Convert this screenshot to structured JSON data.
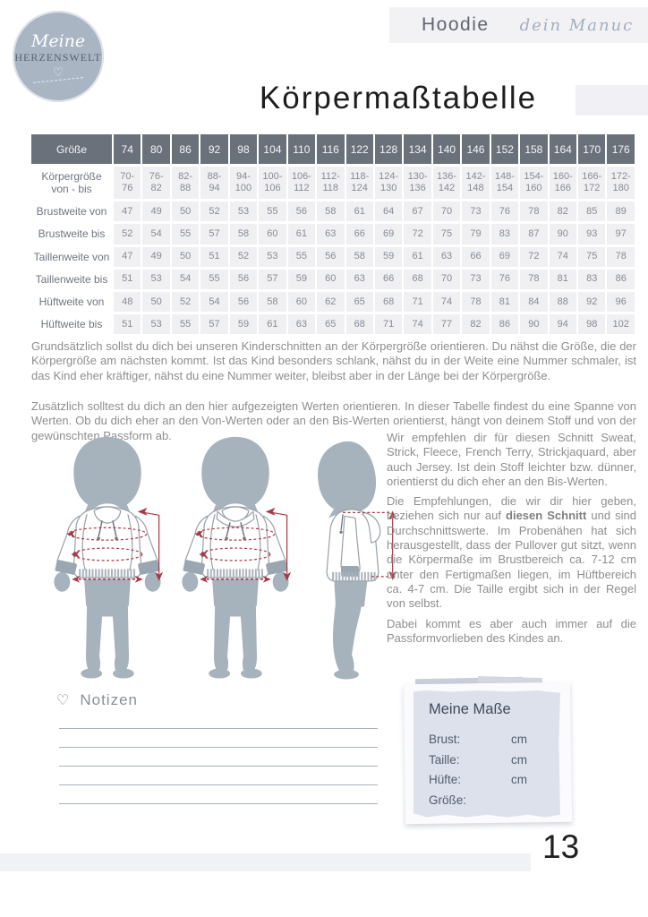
{
  "logo": {
    "script_text": "Meine",
    "brand_text": "HERZENSWELT",
    "heart_icon": "♡"
  },
  "header_bar": {
    "pattern_name": "Hoodie",
    "script_note": "dein Manuc"
  },
  "page_title": "Körpermaßtabelle",
  "size_table": {
    "corner_header": "Größe",
    "sizes": [
      "74",
      "80",
      "86",
      "92",
      "98",
      "104",
      "110",
      "116",
      "122",
      "128",
      "134",
      "140",
      "146",
      "152",
      "158",
      "164",
      "170",
      "176"
    ],
    "rows": [
      {
        "label": "Körpergröße\nvon - bis",
        "values": [
          "70-\n76",
          "76-\n82",
          "82-\n88",
          "88-\n94",
          "94-\n100",
          "100-\n106",
          "106-\n112",
          "112-\n118",
          "118-\n124",
          "124-\n130",
          "130-\n136",
          "136-\n142",
          "142-\n148",
          "148-\n154",
          "154-\n160",
          "160-\n166",
          "166-\n172",
          "172-\n180"
        ]
      },
      {
        "label": "Brustweite von",
        "values": [
          "47",
          "49",
          "50",
          "52",
          "53",
          "55",
          "56",
          "58",
          "61",
          "64",
          "67",
          "70",
          "73",
          "76",
          "78",
          "82",
          "85",
          "89"
        ]
      },
      {
        "label": "Brustweite bis",
        "values": [
          "52",
          "54",
          "55",
          "57",
          "58",
          "60",
          "61",
          "63",
          "66",
          "69",
          "72",
          "75",
          "79",
          "83",
          "87",
          "90",
          "93",
          "97"
        ]
      },
      {
        "label": "Taillenweite von",
        "values": [
          "47",
          "49",
          "50",
          "51",
          "52",
          "53",
          "55",
          "56",
          "58",
          "59",
          "61",
          "63",
          "66",
          "69",
          "72",
          "74",
          "75",
          "78"
        ]
      },
      {
        "label": "Taillenweite bis",
        "values": [
          "51",
          "53",
          "54",
          "55",
          "56",
          "57",
          "59",
          "60",
          "63",
          "66",
          "68",
          "70",
          "73",
          "76",
          "78",
          "81",
          "83",
          "86"
        ]
      },
      {
        "label": "Hüftweite von",
        "values": [
          "48",
          "50",
          "52",
          "54",
          "56",
          "58",
          "60",
          "62",
          "65",
          "68",
          "71",
          "74",
          "78",
          "81",
          "84",
          "88",
          "92",
          "96"
        ]
      },
      {
        "label": "Hüftweite bis",
        "values": [
          "51",
          "53",
          "55",
          "57",
          "59",
          "61",
          "63",
          "65",
          "68",
          "71",
          "74",
          "77",
          "82",
          "86",
          "90",
          "94",
          "98",
          "102"
        ]
      }
    ]
  },
  "intro_paragraphs": {
    "p1": "Grundsätzlich sollst du dich bei unseren Kinderschnitten an der Körpergröße orientieren. Du nähst die Größe, die der Körpergröße am nächsten kommt. Ist das Kind besonders schlank, nähst du in der Weite eine Nummer schmaler, ist das Kind eher kräftiger, nähst du eine Nummer weiter, bleibst aber in der Länge bei der Körpergröße.",
    "p2": "Zusätzlich solltest du dich an den hier aufgezeigten Werten orientieren. In dieser Tabelle findest du eine Spanne von Werten. Ob du dich eher an den Von-Werten oder an den Bis-Werten orientierst, hängt von deinem Stoff und von der gewünschten Passform ab."
  },
  "side_text": {
    "para1": "Wir empfehlen dir für diesen Schnitt Sweat, Strick, Fleece, French Terry, Strickjaquard, aber auch Jersey. Ist dein Stoff leichter bzw. dünner, orientierst du dich eher an den Bis-Werten.",
    "para2_pre": "Die Empfehlungen, die wir dir hier geben, beziehen sich nur auf ",
    "para2_bold": "diesen Schnitt",
    "para2_post": " und sind Durchschnittswerte. Im Probenähen hat sich herausgestellt, dass der Pullover gut sitzt, wenn die Körpermaße im Brustbereich ca. 7-12 cm unter den Fertigmaßen liegen, im Hüftbereich ca. 4-7 cm. Die Taille ergibt sich in der Regel von selbst.",
    "para3": "Dabei kommt es aber auch immer auf die Passformvorlieben des Kindes an."
  },
  "notes": {
    "heart_icon": "♡",
    "title": "Notizen",
    "line_count": 5
  },
  "measures_box": {
    "title": "Meine Maße",
    "fields": [
      {
        "label": "Brust:",
        "unit": "cm"
      },
      {
        "label": "Taille:",
        "unit": "cm"
      },
      {
        "label": "Hüfte:",
        "unit": "cm"
      },
      {
        "label": "Größe:",
        "unit": ""
      }
    ]
  },
  "page_number": "13",
  "colors": {
    "table_header_bg": "#6b717b",
    "table_cell_bg": "#f0f0f3",
    "accent_red": "#a63a46",
    "silhouette": "#a6b2bc",
    "notes_box_bg": "#dde1ec",
    "band_bg": "#f2f2f5"
  }
}
